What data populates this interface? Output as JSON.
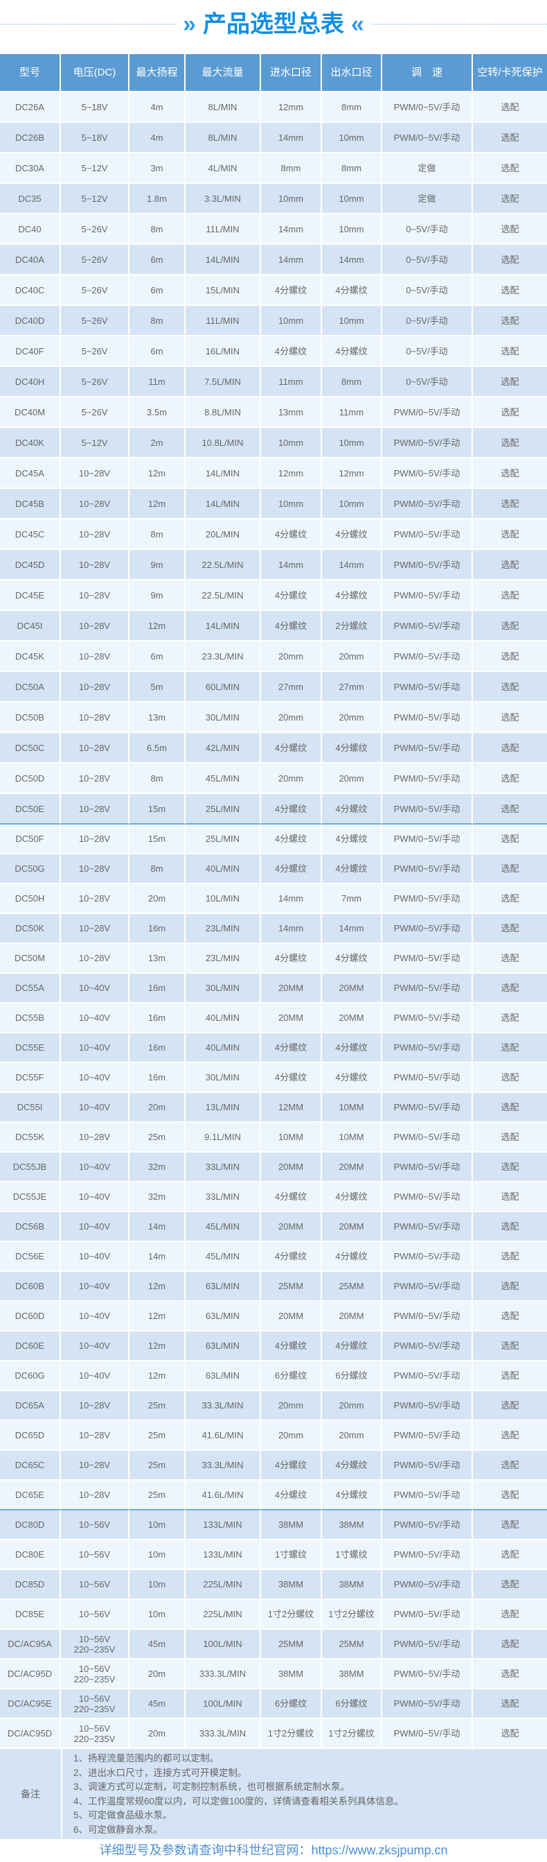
{
  "title": "产品选型总表",
  "colors": {
    "accent": "#0f8fe6",
    "header_bg": "#5a9bd4",
    "row_light": "#eef6fd",
    "row_dark": "#d5e4f4"
  },
  "headers": [
    "型号",
    "电压(DC)",
    "最大扬程",
    "最大流量",
    "进水口径",
    "出水口径",
    "调　速",
    "空转/卡死保护"
  ],
  "groups": [
    [
      [
        "DC26A",
        "5~18V",
        "4m",
        "8L/MIN",
        "12mm",
        "8mm",
        "PWM/0~5V/手动",
        "选配"
      ],
      [
        "DC26B",
        "5~18V",
        "4m",
        "8L/MIN",
        "14mm",
        "10mm",
        "PWM/0~5V/手动",
        "选配"
      ],
      [
        "DC30A",
        "5~12V",
        "3m",
        "4L/MIN",
        "8mm",
        "8mm",
        "定做",
        "选配"
      ],
      [
        "DC35",
        "5~12V",
        "1.8m",
        "3.3L/MIN",
        "10mm",
        "10mm",
        "定做",
        "选配"
      ],
      [
        "DC40",
        "5~26V",
        "8m",
        "11L/MIN",
        "14mm",
        "10mm",
        "0~5V/手动",
        "选配"
      ],
      [
        "DC40A",
        "5~26V",
        "6m",
        "14L/MIN",
        "14mm",
        "14mm",
        "0~5V/手动",
        "选配"
      ],
      [
        "DC40C",
        "5~26V",
        "6m",
        "15L/MIN",
        "4分螺纹",
        "4分螺纹",
        "0~5V/手动",
        "选配"
      ],
      [
        "DC40D",
        "5~26V",
        "8m",
        "11L/MIN",
        "10mm",
        "10mm",
        "0~5V/手动",
        "选配"
      ],
      [
        "DC40F",
        "5~26V",
        "6m",
        "16L/MIN",
        "4分螺纹",
        "4分螺纹",
        "0~5V/手动",
        "选配"
      ],
      [
        "DC40H",
        "5~26V",
        "11m",
        "7.5L/MIN",
        "11mm",
        "8mm",
        "0~5V/手动",
        "选配"
      ],
      [
        "DC40M",
        "5~26V",
        "3.5m",
        "8.8L/MIN",
        "13mm",
        "11mm",
        "PWM/0~5V/手动",
        "选配"
      ],
      [
        "DC40K",
        "5~12V",
        "2m",
        "10.8L/MIN",
        "10mm",
        "10mm",
        "PWM/0~5V/手动",
        "选配"
      ],
      [
        "DC45A",
        "10~28V",
        "12m",
        "14L/MIN",
        "12mm",
        "12mm",
        "PWM/0~5V/手动",
        "选配"
      ],
      [
        "DC45B",
        "10~28V",
        "12m",
        "14L/MIN",
        "10mm",
        "10mm",
        "PWM/0~5V/手动",
        "选配"
      ],
      [
        "DC45C",
        "10~28V",
        "8m",
        "20L/MIN",
        "4分螺纹",
        "4分螺纹",
        "PWM/0~5V/手动",
        "选配"
      ],
      [
        "DC45D",
        "10~28V",
        "9m",
        "22.5L/MIN",
        "14mm",
        "14mm",
        "PWM/0~5V/手动",
        "选配"
      ],
      [
        "DC45E",
        "10~28V",
        "9m",
        "22.5L/MIN",
        "4分螺纹",
        "4分螺纹",
        "PWM/0~5V/手动",
        "选配"
      ],
      [
        "DC45I",
        "10~28V",
        "12m",
        "14L/MIN",
        "4分螺纹",
        "2分螺纹",
        "PWM/0~5V/手动",
        "选配"
      ],
      [
        "DC45K",
        "10~28V",
        "6m",
        "23.3L/MIN",
        "20mm",
        "20mm",
        "PWM/0~5V/手动",
        "选配"
      ],
      [
        "DC50A",
        "10~28V",
        "5m",
        "60L/MIN",
        "27mm",
        "27mm",
        "PWM/0~5V/手动",
        "选配"
      ],
      [
        "DC50B",
        "10~28V",
        "13m",
        "30L/MIN",
        "20mm",
        "20mm",
        "PWM/0~5V/手动",
        "选配"
      ],
      [
        "DC50C",
        "10~28V",
        "6.5m",
        "42L/MIN",
        "4分螺纹",
        "4分螺纹",
        "PWM/0~5V/手动",
        "选配"
      ],
      [
        "DC50D",
        "10~28V",
        "8m",
        "45L/MIN",
        "20mm",
        "20mm",
        "PWM/0~5V/手动",
        "选配"
      ],
      [
        "DC50E",
        "10~28V",
        "15m",
        "25L/MIN",
        "4分螺纹",
        "4分螺纹",
        "PWM/0~5V/手动",
        "选配"
      ]
    ],
    [
      [
        "DC50F",
        "10~28V",
        "15m",
        "25L/MIN",
        "4分螺纹",
        "4分螺纹",
        "PWM/0~5V/手动",
        "选配"
      ],
      [
        "DC50G",
        "10~28V",
        "8m",
        "40L/MIN",
        "4分螺纹",
        "4分螺纹",
        "PWM/0~5V/手动",
        "选配"
      ],
      [
        "DC50H",
        "10~28V",
        "20m",
        "10L/MIN",
        "14mm",
        "7mm",
        "PWM/0~5V/手动",
        "选配"
      ],
      [
        "DC50K",
        "10~28V",
        "16m",
        "23L/MIN",
        "14mm",
        "14mm",
        "PWM/0~5V/手动",
        "选配"
      ],
      [
        "DC50M",
        "10~28V",
        "13m",
        "23L/MIN",
        "4分螺纹",
        "4分螺纹",
        "PWM/0~5V/手动",
        "选配"
      ],
      [
        "DC55A",
        "10~40V",
        "16m",
        "30L/MIN",
        "20MM",
        "20MM",
        "PWM/0~5V/手动",
        "选配"
      ],
      [
        "DC55B",
        "10~40V",
        "16m",
        "40L/MIN",
        "20MM",
        "20MM",
        "PWM/0~5V/手动",
        "选配"
      ],
      [
        "DC55E",
        "10~40V",
        "16m",
        "40L/MIN",
        "4分螺纹",
        "4分螺纹",
        "PWM/0~5V/手动",
        "选配"
      ],
      [
        "DC55F",
        "10~40V",
        "16m",
        "30L/MIN",
        "4分螺纹",
        "4分螺纹",
        "PWM/0~5V/手动",
        "选配"
      ],
      [
        "DC55I",
        "10~40V",
        "20m",
        "13L/MIN",
        "12MM",
        "10MM",
        "PWM/0~5V/手动",
        "选配"
      ],
      [
        "DC55K",
        "10~28V",
        "25m",
        "9.1L/MIN",
        "10MM",
        "10MM",
        "PWM/0~5V/手动",
        "选配"
      ],
      [
        "DC55JB",
        "10~40V",
        "32m",
        "33L/MIN",
        "20MM",
        "20MM",
        "PWM/0~5V/手动",
        "选配"
      ],
      [
        "DC55JE",
        "10~40V",
        "32m",
        "33L/MIN",
        "4分螺纹",
        "4分螺纹",
        "PWM/0~5V/手动",
        "选配"
      ],
      [
        "DC56B",
        "10~40V",
        "14m",
        "45L/MIN",
        "20MM",
        "20MM",
        "PWM/0~5V/手动",
        "选配"
      ],
      [
        "DC56E",
        "10~40V",
        "14m",
        "45L/MIN",
        "4分螺纹",
        "4分螺纹",
        "PWM/0~5V/手动",
        "选配"
      ],
      [
        "DC60B",
        "10~40V",
        "12m",
        "63L/MIN",
        "25MM",
        "25MM",
        "PWM/0~5V/手动",
        "选配"
      ],
      [
        "DC60D",
        "10~40V",
        "12m",
        "63L/MIN",
        "20MM",
        "20MM",
        "PWM/0~5V/手动",
        "选配"
      ],
      [
        "DC60E",
        "10~40V",
        "12m",
        "63L/MIN",
        "4分螺纹",
        "4分螺纹",
        "PWM/0~5V/手动",
        "选配"
      ],
      [
        "DC60G",
        "10~40V",
        "12m",
        "63L/MIN",
        "6分螺纹",
        "6分螺纹",
        "PWM/0~5V/手动",
        "选配"
      ],
      [
        "DC65A",
        "10~28V",
        "25m",
        "33.3L/MIN",
        "20mm",
        "20mm",
        "PWM/0~5V/手动",
        "选配"
      ],
      [
        "DC65D",
        "10~28V",
        "25m",
        "41.6L/MIN",
        "20mm",
        "20mm",
        "PWM/0~5V/手动",
        "选配"
      ],
      [
        "DC65C",
        "10~28V",
        "25m",
        "33.3L/MIN",
        "4分螺纹",
        "4分螺纹",
        "PWM/0~5V/手动",
        "选配"
      ],
      [
        "DC65E",
        "10~28V",
        "25m",
        "41.6L/MIN",
        "4分螺纹",
        "4分螺纹",
        "PWM/0~5V/手动",
        "选配"
      ]
    ],
    [
      [
        "DC80D",
        "10~56V",
        "10m",
        "133L/MIN",
        "38MM",
        "38MM",
        "PWM/0~5V/手动",
        "选配"
      ],
      [
        "DC80E",
        "10~56V",
        "10m",
        "133L/MIN",
        "1寸螺纹",
        "1寸螺纹",
        "PWM/0~5V/手动",
        "选配"
      ],
      [
        "DC85D",
        "10~56V",
        "10m",
        "225L/MIN",
        "38MM",
        "38MM",
        "PWM/0~5V/手动",
        "选配"
      ],
      [
        "DC85E",
        "10~56V",
        "10m",
        "225L/MIN",
        "1寸2分螺纹",
        "1寸2分螺纹",
        "PWM/0~5V/手动",
        "选配"
      ],
      [
        "DC/AC95A",
        "10~56V\n220~235V",
        "45m",
        "100L/MIN",
        "25MM",
        "25MM",
        "PWM/0~5V/手动",
        "选配"
      ],
      [
        "DC/AC95D",
        "10~56V\n220~235V",
        "20m",
        "333.3L/MIN",
        "38MM",
        "38MM",
        "PWM/0~5V/手动",
        "选配"
      ],
      [
        "DC/AC95E",
        "10~56V\n220~235V",
        "45m",
        "100L/MIN",
        "6分螺纹",
        "6分螺纹",
        "PWM/0~5V/手动",
        "选配"
      ],
      [
        "DC/AC95D",
        "10~56V\n220~235V",
        "20m",
        "333.3L/MIN",
        "1寸2分螺纹",
        "1寸2分螺纹",
        "PWM/0~5V/手动",
        "选配"
      ]
    ]
  ],
  "notes": {
    "label": "备注",
    "items": [
      "1、扬程流量范围内的都可以定制。",
      "2、进出水口尺寸，连接方式可开模定制。",
      "3、调速方式可以定制，可定制控制系统，也可根据系统定制水泵。",
      "4、工作温度常规60度以内，可以定做100度的，详情请查看相关系列具体信息。",
      "5、可定做食品级水泵。",
      "6、可定做静音水泵。"
    ]
  },
  "footer": "详细型号及参数请查询中科世纪官网：https://www.zksjpump.cn"
}
